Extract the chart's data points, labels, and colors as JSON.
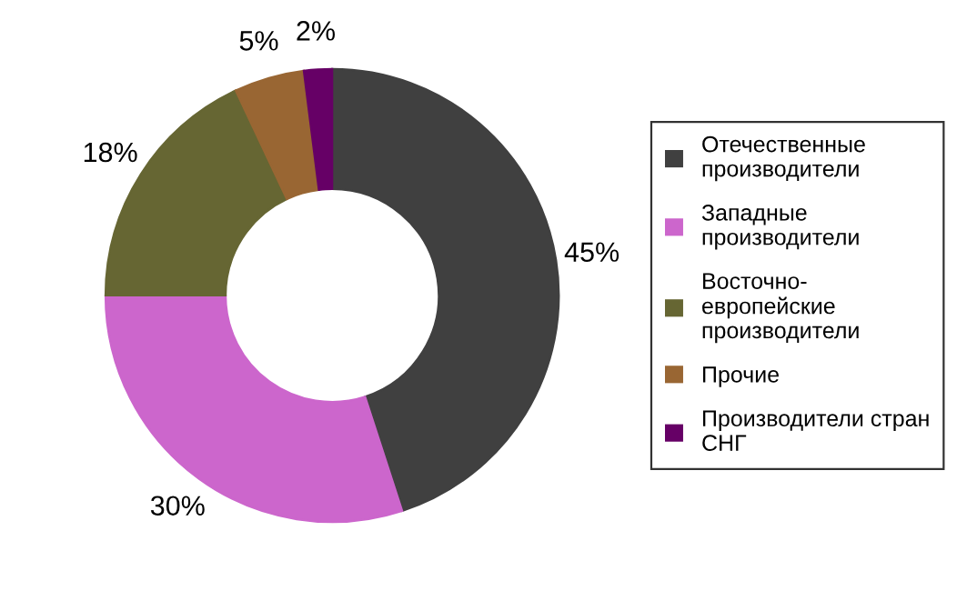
{
  "chart_data": {
    "type": "donut",
    "categories": [
      "Отечественные\nпроизводители",
      "Западные\nпроизводители",
      "Восточно-\nевропейские\nпроизводители",
      "Прочие",
      "Производители стран\nСНГ"
    ],
    "values": [
      45,
      30,
      18,
      5,
      2
    ],
    "colors": [
      "#404040",
      "#cc66cc",
      "#666633",
      "#996633",
      "#660066"
    ],
    "value_labels": [
      "45%",
      "30%",
      "18%",
      "5%",
      "2%"
    ],
    "legend": "right"
  }
}
